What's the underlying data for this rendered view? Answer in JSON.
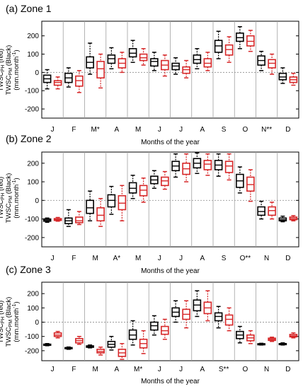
{
  "figure": {
    "xlabel": "Months of the year",
    "ylabel_line1": "TWSC",
    "ylabel_line1_sub": "PH",
    "ylabel_line1_tail": " (red)",
    "ylabel_line2": "TWSC",
    "ylabel_line2_sub": "PM",
    "ylabel_line2_tail": " (Black)",
    "ylabel_line3": "(mm.month",
    "ylabel_line3_sup": "-1",
    "ylabel_line3_tail": ")",
    "colors": {
      "pm": "#000000",
      "ph": "#d62728",
      "grid": "#a0a0a0",
      "zero": "#999999"
    }
  },
  "chart_data": [
    {
      "type": "box",
      "title": "(a) Zone 1",
      "ylim": [
        -250,
        280
      ],
      "yticks": [
        200,
        100,
        0,
        -100,
        -200
      ],
      "months": [
        "J",
        "F",
        "M*",
        "A",
        "M",
        "J",
        "J",
        "A",
        "S",
        "O",
        "N**",
        "D"
      ],
      "series": [
        {
          "name": "TWSC PM (Black)",
          "color": "#000000",
          "boxes": [
            {
              "wlo": -90,
              "q1": -55,
              "med": -35,
              "q3": -15,
              "whi": 15
            },
            {
              "wlo": -80,
              "q1": -55,
              "med": -30,
              "q3": -5,
              "whi": 25
            },
            {
              "wlo": -10,
              "q1": 25,
              "med": 55,
              "q3": 85,
              "whi": 160
            },
            {
              "wlo": 20,
              "q1": 50,
              "med": 75,
              "q3": 95,
              "whi": 135
            },
            {
              "wlo": 55,
              "q1": 85,
              "med": 105,
              "q3": 130,
              "whi": 175
            },
            {
              "wlo": 10,
              "q1": 35,
              "med": 60,
              "q3": 75,
              "whi": 110
            },
            {
              "wlo": -10,
              "q1": 15,
              "med": 35,
              "q3": 50,
              "whi": 80
            },
            {
              "wlo": 20,
              "q1": 50,
              "med": 70,
              "q3": 95,
              "whi": 130
            },
            {
              "wlo": 75,
              "q1": 110,
              "med": 145,
              "q3": 175,
              "whi": 225
            },
            {
              "wlo": 130,
              "q1": 170,
              "med": 190,
              "q3": 215,
              "whi": 250
            },
            {
              "wlo": 10,
              "q1": 40,
              "med": 65,
              "q3": 90,
              "whi": 115
            },
            {
              "wlo": -60,
              "q1": -40,
              "med": -25,
              "q3": -5,
              "whi": 25
            }
          ]
        },
        {
          "name": "TWSC PH (red)",
          "color": "#d62728",
          "boxes": [
            {
              "wlo": -90,
              "q1": -70,
              "med": -55,
              "q3": -45,
              "whi": -25
            },
            {
              "wlo": -110,
              "q1": -75,
              "med": -45,
              "q3": -20,
              "whi": 10
            },
            {
              "wlo": -85,
              "q1": -30,
              "med": 20,
              "q3": 60,
              "whi": 100
            },
            {
              "wlo": 0,
              "q1": 25,
              "med": 50,
              "q3": 75,
              "whi": 110
            },
            {
              "wlo": 40,
              "q1": 65,
              "med": 80,
              "q3": 100,
              "whi": 130
            },
            {
              "wlo": -20,
              "q1": 15,
              "med": 40,
              "q3": 65,
              "whi": 95
            },
            {
              "wlo": -30,
              "q1": -5,
              "med": 15,
              "q3": 30,
              "whi": 65
            },
            {
              "wlo": 10,
              "q1": 30,
              "med": 50,
              "q3": 75,
              "whi": 110
            },
            {
              "wlo": 55,
              "q1": 95,
              "med": 125,
              "q3": 150,
              "whi": 195
            },
            {
              "wlo": 115,
              "q1": 145,
              "med": 170,
              "q3": 200,
              "whi": 230
            },
            {
              "wlo": -10,
              "q1": 25,
              "med": 50,
              "q3": 70,
              "whi": 100
            },
            {
              "wlo": -70,
              "q1": -55,
              "med": -40,
              "q3": -25,
              "whi": -5
            }
          ]
        }
      ]
    },
    {
      "type": "box",
      "title": "(b) Zone 2",
      "ylim": [
        -250,
        260
      ],
      "yticks": [
        200,
        100,
        0,
        -100,
        -200
      ],
      "months": [
        "J",
        "F",
        "M",
        "A*",
        "M",
        "J",
        "J",
        "A",
        "S",
        "O**",
        "N",
        "D"
      ],
      "series": [
        {
          "name": "TWSC PM (Black)",
          "color": "#000000",
          "boxes": [
            {
              "wlo": -118,
              "q1": -112,
              "med": -106,
              "q3": -100,
              "whi": -95
            },
            {
              "wlo": -140,
              "q1": -125,
              "med": -110,
              "q3": -95,
              "whi": -50
            },
            {
              "wlo": -110,
              "q1": -70,
              "med": -40,
              "q3": 0,
              "whi": 50
            },
            {
              "wlo": -75,
              "q1": -35,
              "med": 0,
              "q3": 30,
              "whi": 75
            },
            {
              "wlo": 10,
              "q1": 40,
              "med": 65,
              "q3": 95,
              "whi": 135
            },
            {
              "wlo": 65,
              "q1": 90,
              "med": 110,
              "q3": 130,
              "whi": 160
            },
            {
              "wlo": 125,
              "q1": 160,
              "med": 185,
              "q3": 210,
              "whi": 250
            },
            {
              "wlo": 145,
              "q1": 175,
              "med": 200,
              "q3": 225,
              "whi": 255
            },
            {
              "wlo": 130,
              "q1": 165,
              "med": 190,
              "q3": 215,
              "whi": 250
            },
            {
              "wlo": 40,
              "q1": 70,
              "med": 105,
              "q3": 140,
              "whi": 180
            },
            {
              "wlo": -100,
              "q1": -80,
              "med": -60,
              "q3": -35,
              "whi": -5
            },
            {
              "wlo": -115,
              "q1": -110,
              "med": -104,
              "q3": -95,
              "whi": -85
            }
          ]
        },
        {
          "name": "TWSC PH (red)",
          "color": "#d62728",
          "boxes": [
            {
              "wlo": -112,
              "q1": -108,
              "med": -104,
              "q3": -98,
              "whi": -92
            },
            {
              "wlo": -130,
              "q1": -120,
              "med": -110,
              "q3": -90,
              "whi": -60
            },
            {
              "wlo": -140,
              "q1": -110,
              "med": -80,
              "q3": -40,
              "whi": 10
            },
            {
              "wlo": -110,
              "q1": -50,
              "med": -15,
              "q3": 25,
              "whi": 80
            },
            {
              "wlo": -10,
              "q1": 25,
              "med": 55,
              "q3": 80,
              "whi": 120
            },
            {
              "wlo": 60,
              "q1": 80,
              "med": 105,
              "q3": 125,
              "whi": 155
            },
            {
              "wlo": 100,
              "q1": 140,
              "med": 170,
              "q3": 200,
              "whi": 250
            },
            {
              "wlo": 135,
              "q1": 165,
              "med": 195,
              "q3": 215,
              "whi": 250
            },
            {
              "wlo": 110,
              "q1": 150,
              "med": 185,
              "q3": 210,
              "whi": 250
            },
            {
              "wlo": -5,
              "q1": 50,
              "med": 85,
              "q3": 125,
              "whi": 165
            },
            {
              "wlo": -100,
              "q1": -80,
              "med": -55,
              "q3": -35,
              "whi": -10
            },
            {
              "wlo": -110,
              "q1": -104,
              "med": -98,
              "q3": -90,
              "whi": -82
            }
          ]
        }
      ]
    },
    {
      "type": "box",
      "title": "(c) Zone 3",
      "ylim": [
        -270,
        280
      ],
      "yticks": [
        200,
        100,
        0,
        -100,
        -200
      ],
      "months": [
        "J",
        "F",
        "M",
        "A",
        "M*",
        "J",
        "J",
        "A",
        "S**",
        "O",
        "N",
        "D"
      ],
      "series": [
        {
          "name": "TWSC PM (Black)",
          "color": "#000000",
          "boxes": [
            {
              "wlo": -165,
              "q1": -162,
              "med": -158,
              "q3": -154,
              "whi": -150
            },
            {
              "wlo": -190,
              "q1": -186,
              "med": -182,
              "q3": -178,
              "whi": -174
            },
            {
              "wlo": -180,
              "q1": -176,
              "med": -172,
              "q3": -166,
              "whi": -160
            },
            {
              "wlo": -195,
              "q1": -175,
              "med": -155,
              "q3": -135,
              "whi": -100
            },
            {
              "wlo": -160,
              "q1": -120,
              "med": -90,
              "q3": -55,
              "whi": 10
            },
            {
              "wlo": -90,
              "q1": -55,
              "med": -25,
              "q3": 0,
              "whi": 45
            },
            {
              "wlo": 0,
              "q1": 40,
              "med": 70,
              "q3": 100,
              "whi": 150
            },
            {
              "wlo": 40,
              "q1": 80,
              "med": 120,
              "q3": 155,
              "whi": 220
            },
            {
              "wlo": -40,
              "q1": 10,
              "med": 40,
              "q3": 65,
              "whi": 110
            },
            {
              "wlo": -145,
              "q1": -115,
              "med": -90,
              "q3": -65,
              "whi": -30
            },
            {
              "wlo": -160,
              "q1": -157,
              "med": -154,
              "q3": -151,
              "whi": -148
            },
            {
              "wlo": -160,
              "q1": -157,
              "med": -154,
              "q3": -150,
              "whi": -145
            }
          ]
        },
        {
          "name": "TWSC PH (red)",
          "color": "#d62728",
          "boxes": [
            {
              "wlo": -110,
              "q1": -100,
              "med": -90,
              "q3": -75,
              "whi": -65
            },
            {
              "wlo": -155,
              "q1": -145,
              "med": -130,
              "q3": -115,
              "whi": -100
            },
            {
              "wlo": -230,
              "q1": -215,
              "med": -205,
              "q3": -190,
              "whi": -175
            },
            {
              "wlo": -260,
              "q1": -240,
              "med": -215,
              "q3": -190,
              "whi": -150
            },
            {
              "wlo": -220,
              "q1": -180,
              "med": -150,
              "q3": -120,
              "whi": -60
            },
            {
              "wlo": -120,
              "q1": -85,
              "med": -60,
              "q3": -30,
              "whi": 20
            },
            {
              "wlo": -40,
              "q1": 20,
              "med": 55,
              "q3": 90,
              "whi": 150
            },
            {
              "wlo": 10,
              "q1": 60,
              "med": 100,
              "q3": 140,
              "whi": 220
            },
            {
              "wlo": -60,
              "q1": -20,
              "med": 20,
              "q3": 50,
              "whi": 100
            },
            {
              "wlo": -150,
              "q1": -130,
              "med": -110,
              "q3": -90,
              "whi": -60
            },
            {
              "wlo": -135,
              "q1": -128,
              "med": -120,
              "q3": -112,
              "whi": -105
            },
            {
              "wlo": -110,
              "q1": -103,
              "med": -96,
              "q3": -86,
              "whi": -75
            }
          ]
        }
      ]
    }
  ]
}
